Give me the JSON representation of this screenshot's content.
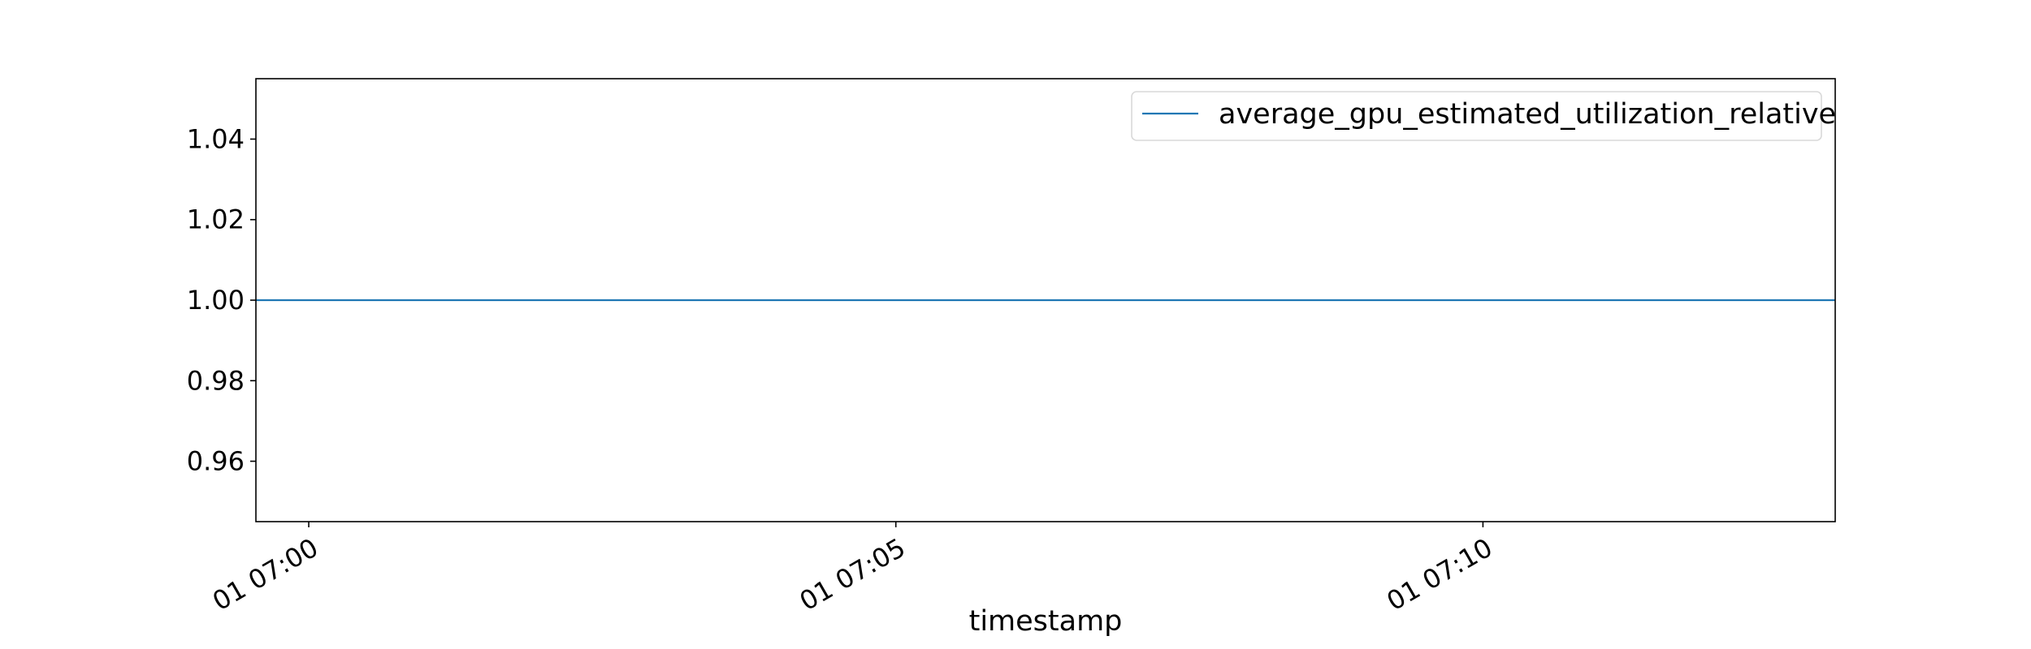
{
  "chart_data": {
    "type": "line",
    "title": "",
    "xlabel": "timestamp",
    "ylabel": "",
    "x_ticks": [
      {
        "minute": 0,
        "label": "01 07:00"
      },
      {
        "minute": 5,
        "label": "01 07:05"
      },
      {
        "minute": 10,
        "label": "01 07:10"
      }
    ],
    "xlim": [
      -0.45,
      13.0
    ],
    "ylim": [
      0.945,
      1.055
    ],
    "y_ticks": [
      0.96,
      0.98,
      1.0,
      1.02,
      1.04
    ],
    "y_tick_labels": [
      "0.96",
      "0.98",
      "1.00",
      "1.02",
      "1.04"
    ],
    "grid": false,
    "legend_position": "top-right",
    "series": [
      {
        "name": "average_gpu_estimated_utilization_relative",
        "color": "#1f77b4",
        "x": [
          -0.45,
          13.0
        ],
        "y": [
          1.0,
          1.0
        ]
      }
    ]
  }
}
